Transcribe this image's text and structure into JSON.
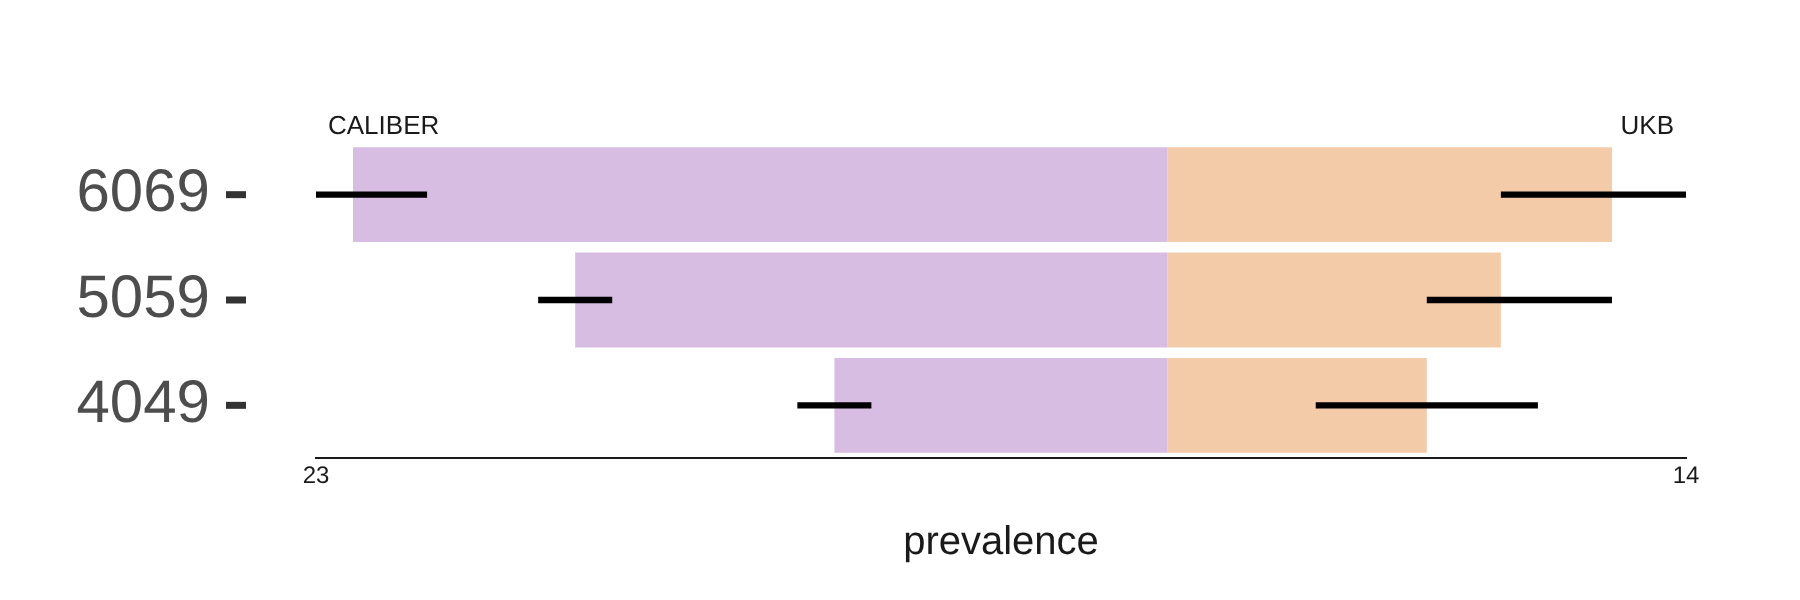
{
  "chart_data": {
    "type": "bar",
    "orientation": "horizontal",
    "xlabel": "prevalence",
    "categories": [
      "6069",
      "5059",
      "4049"
    ],
    "series": [
      {
        "name": "CALIBER",
        "color": "#d8bde2",
        "base": [
          0,
          0,
          0
        ],
        "values": [
          -22,
          -16,
          -9
        ]
      },
      {
        "name": "UKB",
        "color": "#f4cba8",
        "base": [
          0,
          0,
          0
        ],
        "values": [
          12,
          9,
          7
        ]
      },
      {
        "color": "#000000",
        "base": [
          -23,
          -17,
          -10
        ],
        "values": [
          3,
          2,
          2
        ]
      },
      {
        "color": "#000000",
        "base": [
          9,
          7,
          4
        ],
        "values": [
          5,
          5,
          6
        ]
      }
    ],
    "xlim": [
      -23,
      14
    ],
    "xticks": [
      {
        "value": -23,
        "label": "23"
      },
      14
    ],
    "grid": false,
    "legend": false
  }
}
